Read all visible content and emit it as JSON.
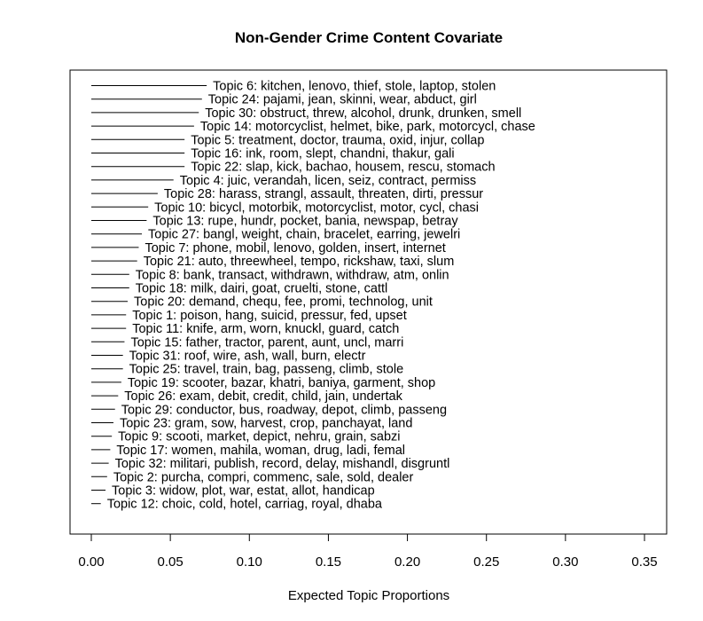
{
  "chart_data": {
    "type": "bar",
    "title": "Non-Gender Crime Content Covariate",
    "xlabel": "Expected Topic Proportions",
    "ylabel": "",
    "xlim": [
      0.0,
      0.35
    ],
    "xticks": [
      "0.00",
      "0.05",
      "0.10",
      "0.15",
      "0.20",
      "0.25",
      "0.30",
      "0.35"
    ],
    "grid": false,
    "orientation": "horizontal",
    "categories": [
      "Topic 6: kitchen, lenovo, thief, stole, laptop, stolen",
      "Topic 24: pajami, jean, skinni, wear, abduct, girl",
      "Topic 30: obstruct, threw, alcohol, drunk, drunken, smell",
      "Topic 14: motorcyclist, helmet, bike, park, motorcycl, chase",
      "Topic 5: treatment, doctor, trauma, oxid, injur, collap",
      "Topic 16: ink, room, slept, chandni, thakur, gali",
      "Topic 22: slap, kick, bachao, housem, rescu, stomach",
      "Topic 4: juic, verandah, licen, seiz, contract, permiss",
      "Topic 28: harass, strangl, assault, threaten, dirti, pressur",
      "Topic 10: bicycl, motorbik, motorcyclist, motor, cycl, chasi",
      "Topic 13: rupe, hundr, pocket, bania, newspap, betray",
      "Topic 27: bangl, weight, chain, bracelet, earring, jewelri",
      "Topic 7: phone, mobil, lenovo, golden, insert, internet",
      "Topic 21: auto, threewheel, tempo, rickshaw, taxi, slum",
      "Topic 8: bank, transact, withdrawn, withdraw, atm, onlin",
      "Topic 18: milk, dairi, goat, cruelti, stone, cattl",
      "Topic 20: demand, chequ, fee, promi, technolog, unit",
      "Topic 1: poison, hang, suicid, pressur, fed, upset",
      "Topic 11: knife, arm, worn, knuckl, guard, catch",
      "Topic 15: father, tractor, parent, aunt, uncl, marri",
      "Topic 31: roof, wire, ash, wall, burn, electr",
      "Topic 25: travel, train, bag, passeng, climb, stole",
      "Topic 19: scooter, bazar, khatri, baniya, garment, shop",
      "Topic 26: exam, debit, credit, child, jain, undertak",
      "Topic 29: conductor, bus, roadway, depot, climb, passeng",
      "Topic 23: gram, sow, harvest, crop, panchayat, land",
      "Topic 9: scooti, market, depict, nehru, grain, sabzi",
      "Topic 17: women, mahila, woman, drug, ladi, femal",
      "Topic 32: militari, publish, record, delay, mishandl, disgruntl",
      "Topic 2: purcha, compri, commenc, sale, sold, dealer",
      "Topic 3: widow, plot, war, estat, allot, handicap",
      "Topic 12: choic, cold, hotel, carriag, royal, dhaba"
    ],
    "values": [
      0.073,
      0.07,
      0.068,
      0.065,
      0.059,
      0.059,
      0.059,
      0.052,
      0.042,
      0.036,
      0.035,
      0.032,
      0.03,
      0.029,
      0.024,
      0.024,
      0.023,
      0.022,
      0.022,
      0.021,
      0.02,
      0.02,
      0.019,
      0.017,
      0.015,
      0.014,
      0.013,
      0.012,
      0.011,
      0.01,
      0.009,
      0.006
    ]
  }
}
